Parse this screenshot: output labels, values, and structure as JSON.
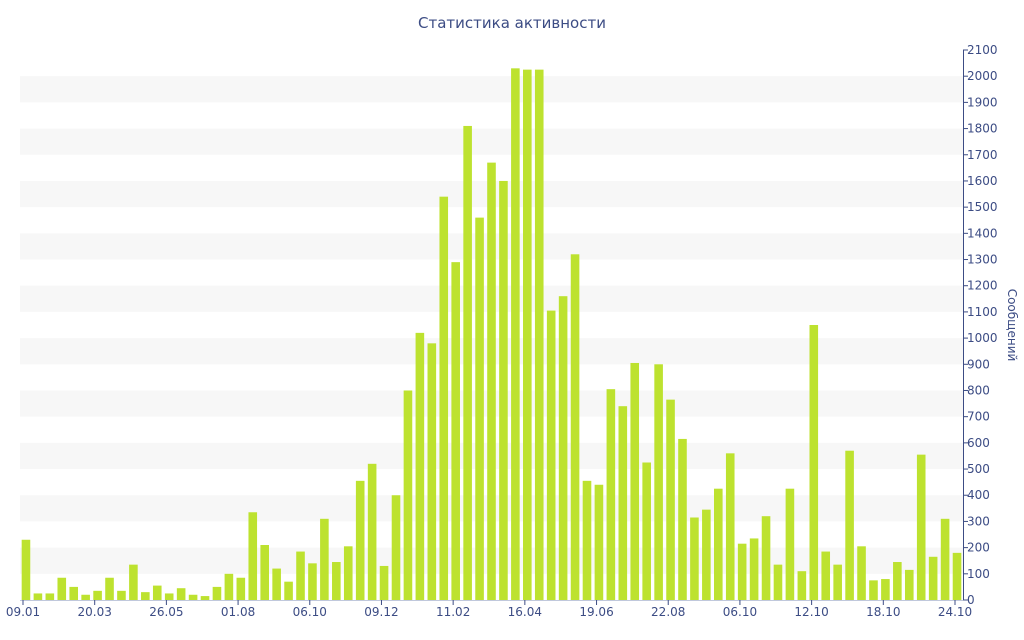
{
  "chart_data": {
    "type": "bar",
    "title": "Статистика активности",
    "ylabel": "Сообщений",
    "xlabel": "",
    "ylim": [
      0,
      2100
    ],
    "y_ticks": [
      0,
      100,
      200,
      300,
      400,
      500,
      600,
      700,
      800,
      900,
      1000,
      1100,
      1200,
      1300,
      1400,
      1500,
      1600,
      1700,
      1800,
      1900,
      2000,
      2100
    ],
    "x_tick_labels": [
      "09.01",
      "20.03",
      "26.05",
      "01.08",
      "06.10",
      "09.12",
      "11.02",
      "16.04",
      "19.06",
      "22.08",
      "06.10",
      "12.10",
      "18.10",
      "24.10"
    ],
    "y_axis_position": "right",
    "grid": "alternating horizontal bands",
    "bar_color": "#bde22f",
    "band_color": "#f7f7f7",
    "text_color": "#3c4c84",
    "values": [
      230,
      25,
      25,
      85,
      50,
      20,
      35,
      85,
      35,
      135,
      30,
      55,
      25,
      45,
      20,
      15,
      50,
      100,
      85,
      335,
      210,
      120,
      70,
      185,
      140,
      310,
      145,
      205,
      455,
      520,
      130,
      400,
      800,
      1020,
      980,
      1540,
      1290,
      1810,
      1460,
      1670,
      1600,
      2030,
      2025,
      2025,
      1105,
      1160,
      1320,
      455,
      440,
      805,
      740,
      905,
      525,
      900,
      765,
      615,
      315,
      345,
      425,
      560,
      215,
      235,
      320,
      135,
      425,
      110,
      1050,
      185,
      135,
      570,
      205,
      75,
      80,
      145,
      115,
      555,
      165,
      310,
      180
    ]
  }
}
